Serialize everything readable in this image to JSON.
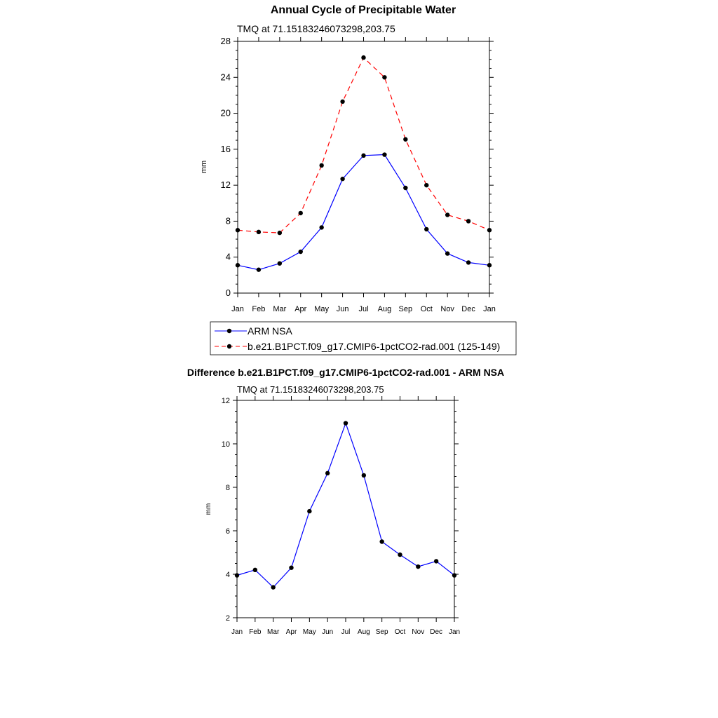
{
  "chart_data": [
    {
      "type": "line",
      "title": "Annual Cycle of Precipitable Water",
      "subtitle": "TMQ at 71.15183246073298,203.75",
      "xlabel": "",
      "ylabel": "mm",
      "categories": [
        "Jan",
        "Feb",
        "Mar",
        "Apr",
        "May",
        "Jun",
        "Jul",
        "Aug",
        "Sep",
        "Oct",
        "Nov",
        "Dec",
        "Jan"
      ],
      "ylim": [
        0,
        28
      ],
      "yticks": [
        "0",
        "4",
        "8",
        "12",
        "16",
        "20",
        "24",
        "28"
      ],
      "grid": false,
      "legend_position": "bottom",
      "series": [
        {
          "name": "ARM NSA",
          "color": "#0000ff",
          "dash": "solid",
          "values": [
            3.1,
            2.6,
            3.3,
            4.6,
            7.3,
            12.7,
            15.3,
            15.4,
            11.7,
            7.1,
            4.4,
            3.4,
            3.1
          ]
        },
        {
          "name": "b.e21.B1PCT.f09_g17.CMIP6-1pctCO2-rad.001 (125-149)",
          "color": "#ff0000",
          "dash": "dashed",
          "values": [
            7.0,
            6.8,
            6.7,
            8.9,
            14.2,
            21.3,
            26.2,
            24.0,
            17.1,
            12.0,
            8.7,
            8.0,
            7.0
          ]
        }
      ]
    },
    {
      "type": "line",
      "title": "Difference b.e21.B1PCT.f09_g17.CMIP6-1pctCO2-rad.001 - ARM NSA",
      "subtitle": "TMQ at 71.15183246073298,203.75",
      "xlabel": "",
      "ylabel": "mm",
      "categories": [
        "Jan",
        "Feb",
        "Mar",
        "Apr",
        "May",
        "Jun",
        "Jul",
        "Aug",
        "Sep",
        "Oct",
        "Nov",
        "Dec",
        "Jan"
      ],
      "ylim": [
        2,
        12
      ],
      "yticks": [
        "2",
        "4",
        "6",
        "8",
        "10",
        "12"
      ],
      "grid": false,
      "series": [
        {
          "name": "Difference",
          "color": "#0000ff",
          "dash": "solid",
          "values": [
            3.95,
            4.2,
            3.4,
            4.3,
            6.9,
            8.65,
            10.95,
            8.55,
            5.5,
            4.9,
            4.35,
            4.6,
            3.95
          ]
        }
      ]
    }
  ]
}
